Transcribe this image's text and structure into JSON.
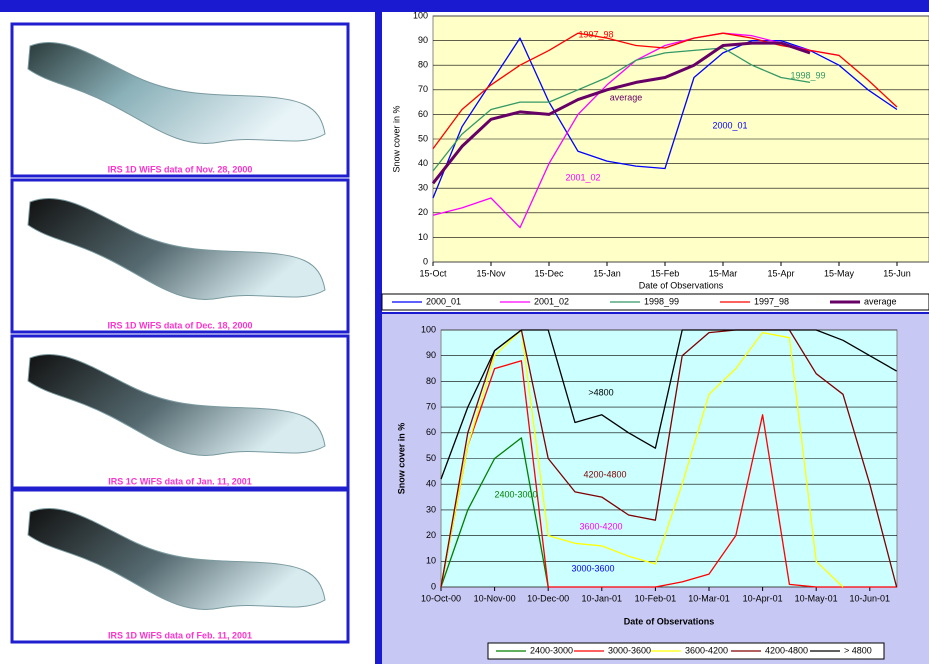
{
  "image_captions": [
    "IRS 1D WiFS data of Nov. 28, 2000",
    "IRS 1D WiFS data of Dec. 18, 2000",
    "IRS 1C WiFS data of Jan. 11, 2001",
    "IRS 1D WiFS data of Feb. 11, 2001"
  ],
  "chart_data": [
    {
      "type": "line",
      "x_label": "Date of Observations",
      "y_label": "Snow cover in %",
      "categories": [
        "15-Oct",
        null,
        "15-Nov",
        null,
        "15-Dec",
        null,
        "15-Jan",
        null,
        "15-Feb",
        null,
        "15-Mar",
        null,
        "15-Apr",
        null,
        "15-May",
        null,
        "15-Jun"
      ],
      "ylim": [
        0,
        100
      ],
      "yticks": [
        0,
        10,
        20,
        30,
        40,
        50,
        60,
        70,
        80,
        90,
        100
      ],
      "grid": true,
      "series": [
        {
          "name": "2000_01",
          "color": "#0000ff",
          "values": [
            26,
            55,
            73,
            91,
            65,
            45,
            41,
            39,
            38,
            75,
            85,
            90,
            90,
            86,
            80,
            70,
            62
          ]
        },
        {
          "name": "2001_02",
          "color": "#ff00ff",
          "values": [
            19,
            22,
            26,
            14,
            40,
            60,
            72,
            82,
            88,
            91,
            93,
            92,
            89,
            86,
            84,
            null,
            null
          ]
        },
        {
          "name": "1998_99",
          "color": "#339966",
          "values": [
            37,
            52,
            62,
            65,
            65,
            70,
            75,
            82,
            85,
            86,
            87,
            80,
            75,
            73,
            null,
            null,
            null
          ]
        },
        {
          "name": "1997_98",
          "color": "#ff0000",
          "values": [
            46,
            62,
            72,
            80,
            86,
            93,
            91,
            88,
            87,
            91,
            93,
            91,
            88,
            86,
            84,
            74,
            63
          ]
        },
        {
          "name": "average",
          "color": "#660066",
          "values": [
            32,
            47,
            58,
            61,
            60,
            66,
            70,
            73,
            75,
            80,
            88,
            89,
            89,
            85,
            null,
            null,
            null
          ]
        }
      ],
      "annotations": [
        {
          "text": "1997_98",
          "color": "#ff0000"
        },
        {
          "text": "1998_99",
          "color": "#339966"
        },
        {
          "text": "average",
          "color": "#660066"
        },
        {
          "text": "2000_01",
          "color": "#0000ff"
        },
        {
          "text": "2001_02",
          "color": "#ff00ff"
        }
      ]
    },
    {
      "type": "line",
      "x_label": "Date of Observations",
      "y_label": "Snow cover in %",
      "categories": [
        "10-Oct-00",
        null,
        "10-Nov-00",
        null,
        "10-Dec-00",
        null,
        "10-Jan-01",
        null,
        "10-Feb-01",
        null,
        "10-Mar-01",
        null,
        "10-Apr-01",
        null,
        "10-May-01",
        null,
        "10-Jun-01",
        null
      ],
      "ylim": [
        0,
        100
      ],
      "yticks": [
        0,
        10,
        20,
        30,
        40,
        50,
        60,
        70,
        80,
        90,
        100
      ],
      "grid": true,
      "series": [
        {
          "name": "2400-3000",
          "color": "#008000",
          "values": [
            0,
            30,
            50,
            58,
            0,
            null,
            null,
            null,
            null,
            null,
            null,
            null,
            null,
            null,
            null,
            null,
            null,
            null
          ]
        },
        {
          "name": "3000-3600",
          "color": "#ff0000",
          "values": [
            0,
            55,
            85,
            88,
            0,
            0,
            0,
            0,
            0,
            2,
            5,
            20,
            67,
            1,
            0,
            0,
            0,
            0
          ]
        },
        {
          "name": "3600-4200",
          "color": "#ffff00",
          "values": [
            0,
            55,
            90,
            100,
            20,
            17,
            16,
            12,
            9,
            40,
            75,
            85,
            99,
            97,
            10,
            0,
            null,
            null
          ]
        },
        {
          "name": "4200-4800",
          "color": "#800000",
          "values": [
            0,
            60,
            92,
            100,
            50,
            37,
            35,
            28,
            26,
            90,
            99,
            100,
            100,
            100,
            83,
            75,
            40,
            0
          ]
        },
        {
          "name": "> 4800",
          "color": "#000000",
          "values": [
            42,
            70,
            92,
            100,
            100,
            64,
            67,
            60,
            54,
            100,
            100,
            100,
            100,
            100,
            100,
            96,
            90,
            84
          ]
        }
      ],
      "annotations": [
        {
          "text": ">4800",
          "color": "#000000"
        },
        {
          "text": "4200-4800",
          "color": "#800000"
        },
        {
          "text": "2400-3000",
          "color": "#008000"
        },
        {
          "text": "3600-4200",
          "color": "#ff00ff"
        },
        {
          "text": "3000-3600",
          "color": "#0000ff"
        }
      ]
    }
  ]
}
